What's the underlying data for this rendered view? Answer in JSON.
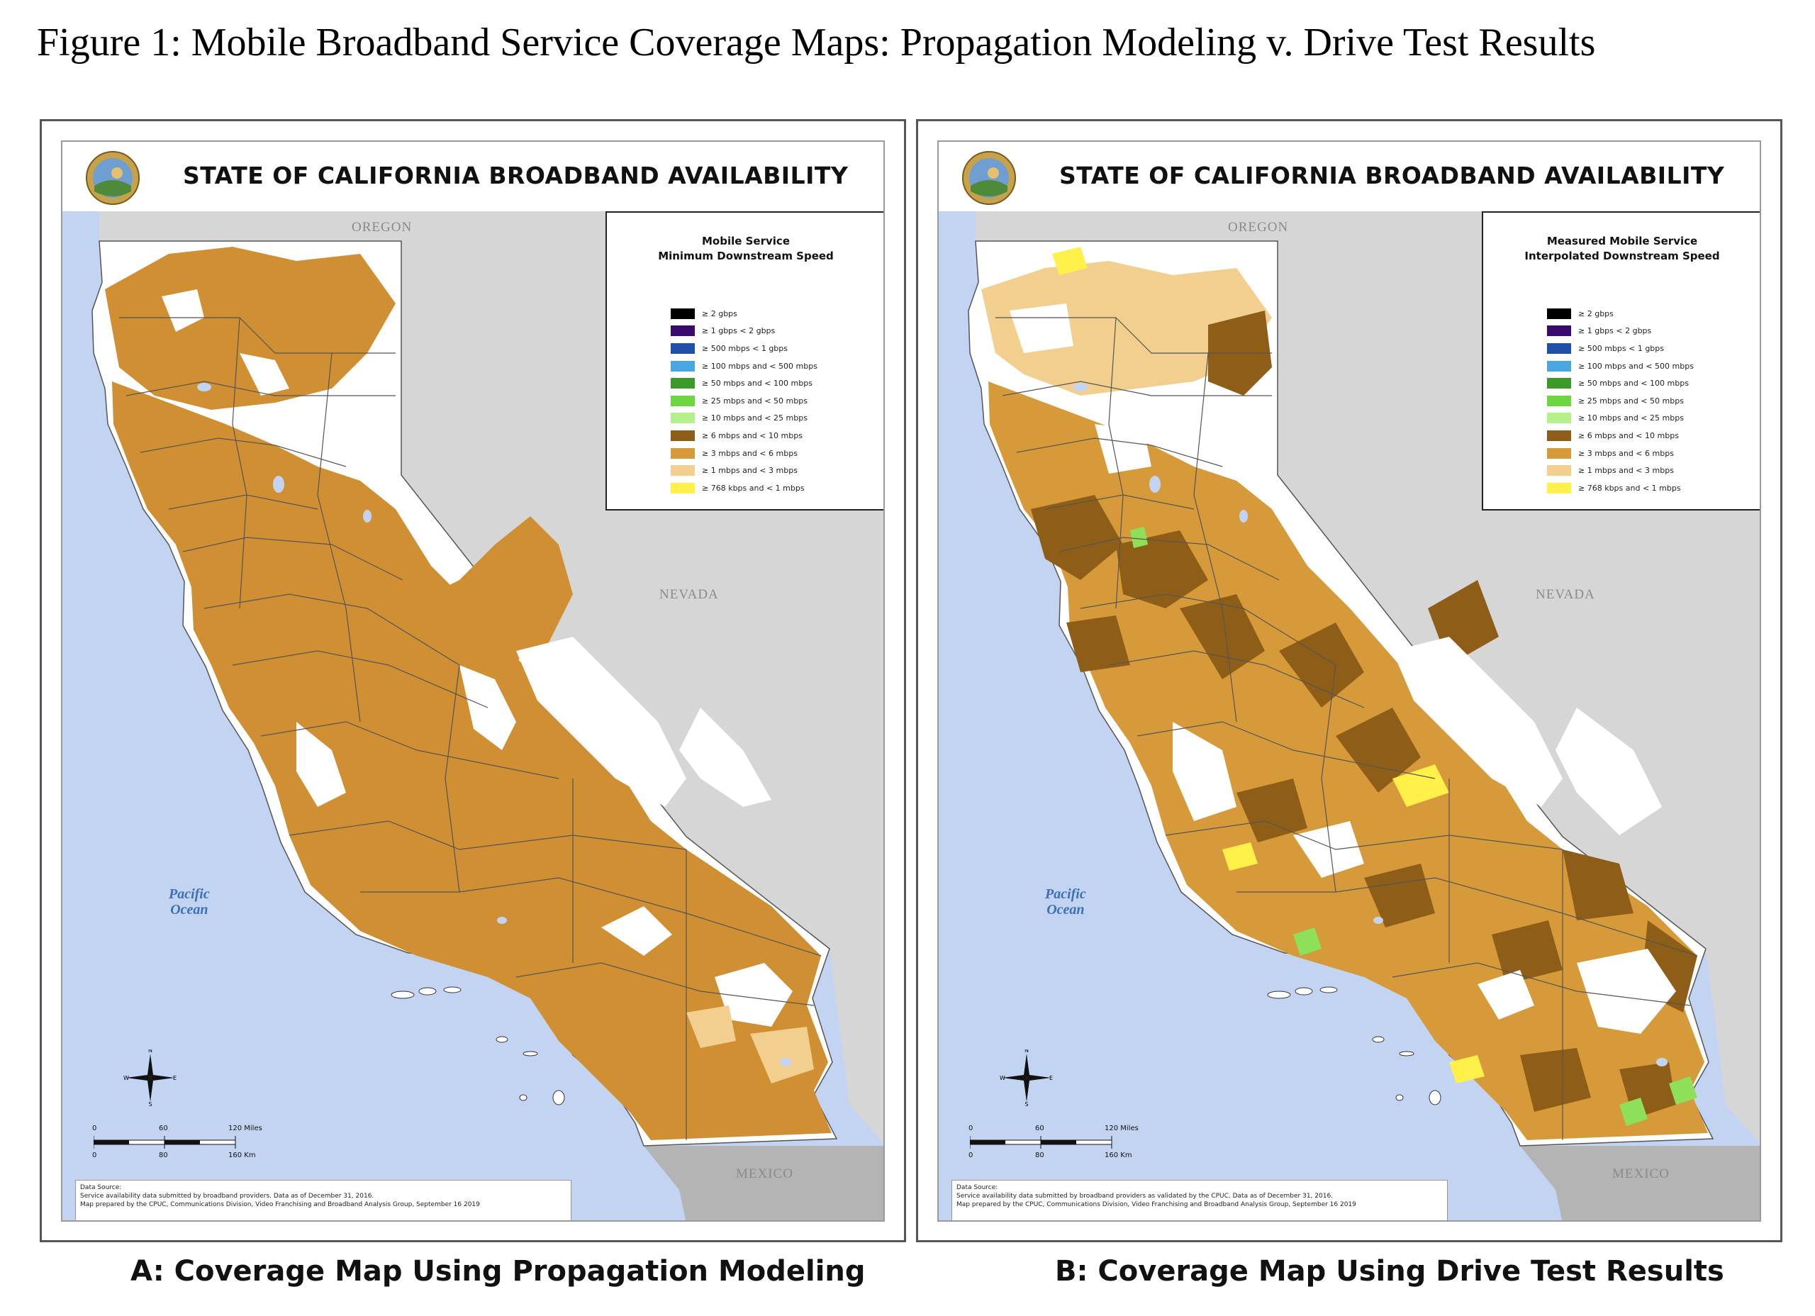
{
  "figure_title": "Figure 1: Mobile Broadband Service Coverage Maps: Propagation Modeling v. Drive Test Results",
  "colors": {
    "ocean": "#c3d4f2",
    "neighbor_land": "#d6d6d6",
    "state_fill": "#ffffff",
    "coverage_brown": "#cf8f32",
    "coverage_dark": "#8e5d18",
    "coverage_light": "#f2cf8f",
    "coverage_yellow": "#fff04a",
    "coverage_green": "#8ee05a"
  },
  "legend_items": [
    {
      "label": "≥ 2 gbps",
      "color": "#000000"
    },
    {
      "label": "≥ 1 gbps < 2 gbps",
      "color": "#3a0a6e"
    },
    {
      "label": "≥ 500 mbps < 1 gbps",
      "color": "#1f4fa8"
    },
    {
      "label": "≥ 100 mbps and < 500 mbps",
      "color": "#4aa6e0"
    },
    {
      "label": "≥ 50 mbps and < 100 mbps",
      "color": "#3b9a2a"
    },
    {
      "label": "≥ 25 mbps and < 50 mbps",
      "color": "#6ed640"
    },
    {
      "label": "≥ 10 mbps and < 25 mbps",
      "color": "#b6f08a"
    },
    {
      "label": "≥ 6 mbps and < 10 mbps",
      "color": "#8e5d18"
    },
    {
      "label": "≥ 3 mbps and < 6 mbps",
      "color": "#d79a3a"
    },
    {
      "label": "≥ 1 mbps and < 3 mbps",
      "color": "#f2cf8f"
    },
    {
      "label": "≥ 768 kbps and < 1 mbps",
      "color": "#fff04a"
    }
  ],
  "panels": [
    {
      "map_title": "STATE OF CALIFORNIA BROADBAND AVAILABILITY",
      "legend_title_1": "Mobile Service",
      "legend_title_2": "Minimum Downstream Speed",
      "labels": {
        "oregon": "OREGON",
        "nevada": "NEVADA",
        "mexico": "MEXICO",
        "ocean_1": "Pacific",
        "ocean_2": "Ocean"
      },
      "compass": {
        "n": "N",
        "s": "S",
        "e": "E",
        "w": "W"
      },
      "scale": {
        "miles_0": "0",
        "miles_60": "60",
        "miles_120": "120 Miles",
        "km_0": "0",
        "km_80": "80",
        "km_160": "160 Km"
      },
      "source_line_1": "Data Source:",
      "source_line_2": "Service availability data submitted by broadband providers. Data as of December 31, 2016.",
      "source_line_3": "Map prepared by the CPUC, Communications Division, Video Franchising and Broadband Analysis Group, September 16 2019",
      "caption": "A: Coverage Map Using Propagation Modeling"
    },
    {
      "map_title": "STATE OF CALIFORNIA BROADBAND AVAILABILITY",
      "legend_title_1": "Measured Mobile Service",
      "legend_title_2": "Interpolated Downstream Speed",
      "labels": {
        "oregon": "OREGON",
        "nevada": "NEVADA",
        "mexico": "MEXICO",
        "ocean_1": "Pacific",
        "ocean_2": "Ocean"
      },
      "compass": {
        "n": "N",
        "s": "S",
        "e": "E",
        "w": "W"
      },
      "scale": {
        "miles_0": "0",
        "miles_60": "60",
        "miles_120": "120 Miles",
        "km_0": "0",
        "km_80": "80",
        "km_160": "160 Km"
      },
      "source_line_1": "Data Source:",
      "source_line_2": "Service availability data submitted by broadband providers as validated by the CPUC. Data as of December 31, 2016.",
      "source_line_3": "Map prepared by the CPUC, Communications Division, Video Franchising and Broadband Analysis Group, September 16 2019",
      "caption": "B: Coverage Map Using Drive Test Results"
    }
  ]
}
